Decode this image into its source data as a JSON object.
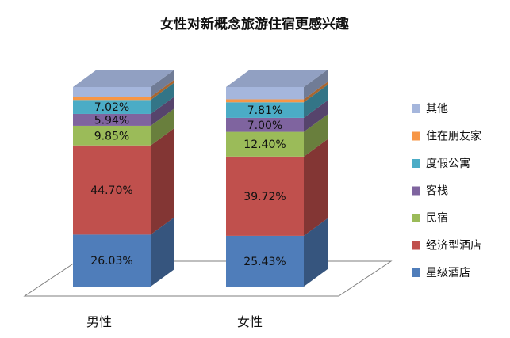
{
  "chart_data": {
    "type": "bar",
    "stacked": true,
    "three_d": true,
    "title": "女性对新概念旅游住宿更感兴趣",
    "categories": [
      "男性",
      "女性"
    ],
    "series": [
      {
        "name": "星级酒店",
        "color": "#4f7dba",
        "values": [
          26.03,
          25.43
        ],
        "labels": [
          "26.03%",
          "25.43%"
        ]
      },
      {
        "name": "经济型酒店",
        "color": "#c0504d",
        "values": [
          44.7,
          39.72
        ],
        "labels": [
          "44.70%",
          "39.72%"
        ]
      },
      {
        "name": "民宿",
        "color": "#9bbb59",
        "values": [
          9.85,
          12.4
        ],
        "labels": [
          "9.85%",
          "12.40%"
        ]
      },
      {
        "name": "客栈",
        "color": "#7f649f",
        "values": [
          5.94,
          7.0
        ],
        "labels": [
          "5.94%",
          "7.00%"
        ]
      },
      {
        "name": "度假公寓",
        "color": "#4bacc6",
        "values": [
          7.02,
          7.81
        ],
        "labels": [
          "7.02%",
          "7.81%"
        ]
      },
      {
        "name": "住在朋友家",
        "color": "#f79646",
        "values": [
          1.5,
          1.5
        ],
        "labels": [
          "",
          ""
        ]
      },
      {
        "name": "其他",
        "color": "#a5b6dc",
        "values": [
          4.96,
          6.14
        ],
        "labels": [
          "",
          ""
        ]
      }
    ],
    "ylim": [
      0,
      100
    ],
    "legend_position": "right",
    "grid": false
  }
}
